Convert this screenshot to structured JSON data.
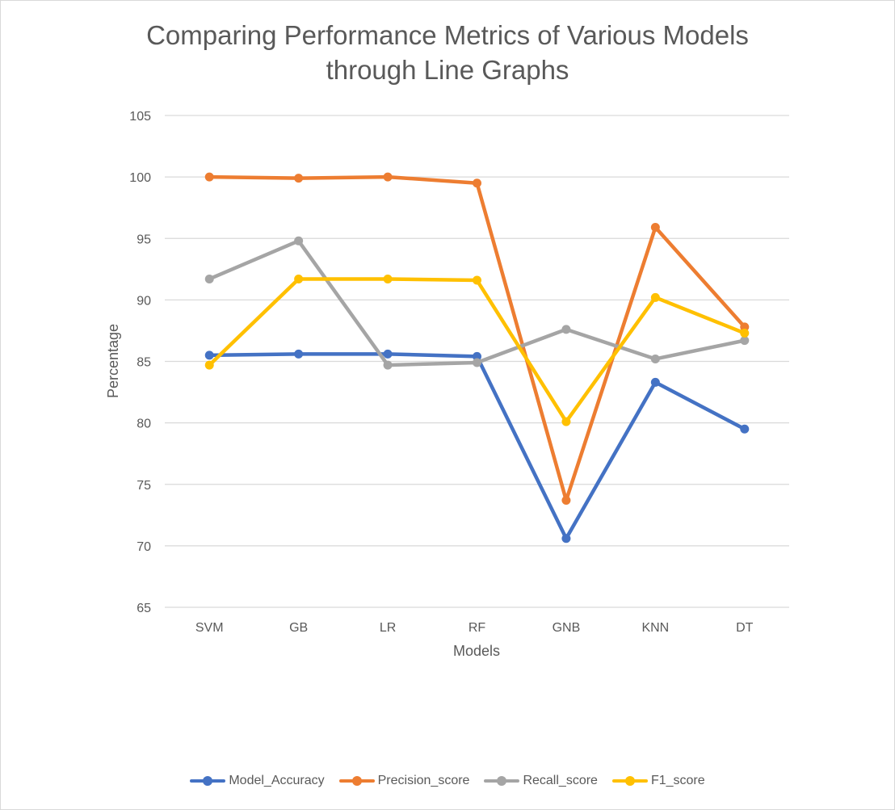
{
  "chart_data": {
    "type": "line",
    "title": "Comparing Performance Metrics of Various Models through Line Graphs",
    "title_lines": [
      "Comparing Performance Metrics of Various Models",
      "through Line Graphs"
    ],
    "xlabel": "Models",
    "ylabel": "Percentage",
    "categories": [
      "SVM",
      "GB",
      "LR",
      "RF",
      "GNB",
      "KNN",
      "DT"
    ],
    "ylim": [
      65,
      105
    ],
    "yticks": [
      65,
      70,
      75,
      80,
      85,
      90,
      95,
      100,
      105
    ],
    "grid": "horizontal",
    "legend_position": "bottom",
    "series": [
      {
        "name": "Model_Accuracy",
        "color": "#4472C4",
        "values": [
          85.5,
          85.6,
          85.6,
          85.4,
          70.6,
          83.3,
          79.5
        ]
      },
      {
        "name": "Precision_score",
        "color": "#ED7D31",
        "values": [
          100.0,
          99.9,
          100.0,
          99.5,
          73.7,
          95.9,
          87.8
        ]
      },
      {
        "name": "Recall_score",
        "color": "#A5A5A5",
        "values": [
          91.7,
          94.8,
          84.7,
          84.9,
          87.6,
          85.2,
          86.7
        ]
      },
      {
        "name": "F1_score",
        "color": "#FFC000",
        "values": [
          84.7,
          91.7,
          91.7,
          91.6,
          80.1,
          90.2,
          87.3
        ]
      }
    ]
  }
}
